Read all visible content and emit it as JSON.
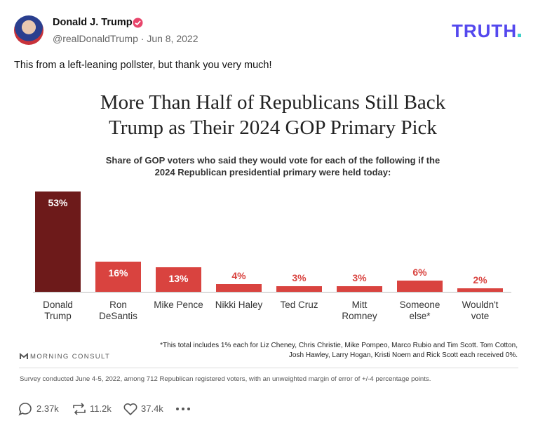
{
  "post": {
    "author": "Donald J. Trump",
    "handle": "@realDonaldTrump",
    "date": "Jun 8, 2022",
    "logo": "TRUTH",
    "text": "This from a left-leaning pollster, but thank you very much!",
    "replies": "2.37k",
    "reposts": "11.2k",
    "likes": "37.4k"
  },
  "chart_data": {
    "type": "bar",
    "title": "More Than Half of Republicans Still Back Trump as Their 2024 GOP Primary Pick",
    "subtitle": "Share of GOP voters who said they would vote for each of the following if the 2024 Republican presidential primary were held today:",
    "categories": [
      "Donald Trump",
      "Ron DeSantis",
      "Mike Pence",
      "Nikki Haley",
      "Ted Cruz",
      "Mitt Romney",
      "Someone else*",
      "Wouldn't vote"
    ],
    "values": [
      53,
      16,
      13,
      4,
      3,
      3,
      6,
      2
    ],
    "value_labels": [
      "53%",
      "16%",
      "13%",
      "4%",
      "3%",
      "3%",
      "6%",
      "2%"
    ],
    "colors": [
      "#6d1a1a",
      "#d9433f",
      "#d9433f",
      "#d9433f",
      "#d9433f",
      "#d9433f",
      "#d9433f",
      "#d9433f"
    ],
    "source": "MORNING CONSULT",
    "footnote": "*This total includes 1% each for Liz Cheney, Chris Christie, Mike Pompeo, Marco Rubio and Tim Scott. Tom Cotton, Josh Hawley, Larry Hogan, Kristi Noem and Rick Scott each received 0%.",
    "note": "Survey conducted June 4-5, 2022, among 712 Republican registered voters, with an unweighted margin of error of +/-4 percentage points."
  }
}
